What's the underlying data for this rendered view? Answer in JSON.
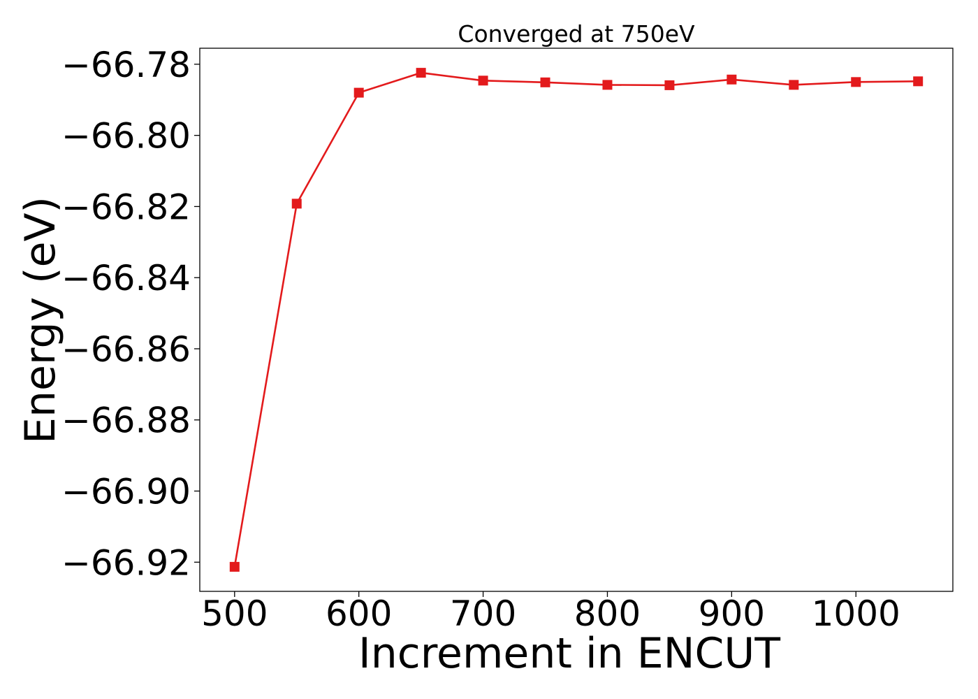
{
  "chart_data": {
    "type": "line",
    "title": "Converged at 750eV",
    "xlabel": "Increment in ENCUT",
    "ylabel": "Energy (eV)",
    "x": [
      500,
      550,
      600,
      650,
      700,
      750,
      800,
      850,
      900,
      950,
      1000,
      1050
    ],
    "series": [
      {
        "values": [
          -66.9213,
          -66.8192,
          -66.788,
          -66.7824,
          -66.7846,
          -66.7851,
          -66.7858,
          -66.7859,
          -66.7843,
          -66.7858,
          -66.785,
          -66.7848
        ],
        "color": "#e31a1c",
        "marker": "square"
      }
    ],
    "xlim": [
      472,
      1078
    ],
    "ylim": [
      -66.9282,
      -66.7755
    ],
    "xticks": [
      500,
      600,
      700,
      800,
      900,
      1000
    ],
    "xtick_labels": [
      "500",
      "600",
      "700",
      "800",
      "900",
      "1000"
    ],
    "yticks": [
      -66.92,
      -66.9,
      -66.88,
      -66.86,
      -66.84,
      -66.82,
      -66.8,
      -66.78
    ],
    "ytick_labels": [
      "−66.92",
      "−66.90",
      "−66.88",
      "−66.86",
      "−66.84",
      "−66.82",
      "−66.80",
      "−66.78"
    ],
    "grid": false,
    "legend": "none"
  }
}
